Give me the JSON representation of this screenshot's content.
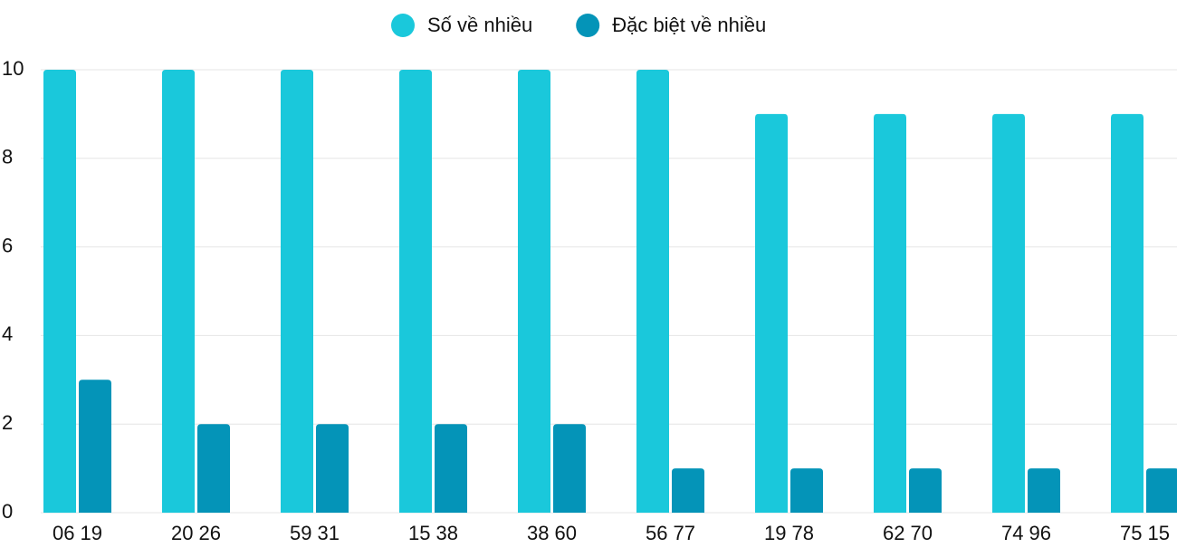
{
  "chart_data": {
    "type": "bar",
    "categories": [
      "06 19",
      "20 26",
      "59 31",
      "15 38",
      "38 60",
      "56 77",
      "19 78",
      "62 70",
      "74 96",
      "75 15"
    ],
    "series": [
      {
        "name": "Số về nhiều",
        "color": "#1ac8db",
        "values": [
          10,
          10,
          10,
          10,
          10,
          10,
          9,
          9,
          9,
          9
        ]
      },
      {
        "name": "Đặc biệt về nhiều",
        "color": "#0494b8",
        "values": [
          3,
          2,
          2,
          2,
          2,
          1,
          1,
          1,
          1,
          1
        ]
      }
    ],
    "ylim": [
      0,
      10
    ],
    "yticks": [
      0,
      2,
      4,
      6,
      8,
      10
    ],
    "grid": true,
    "legend": "top"
  }
}
